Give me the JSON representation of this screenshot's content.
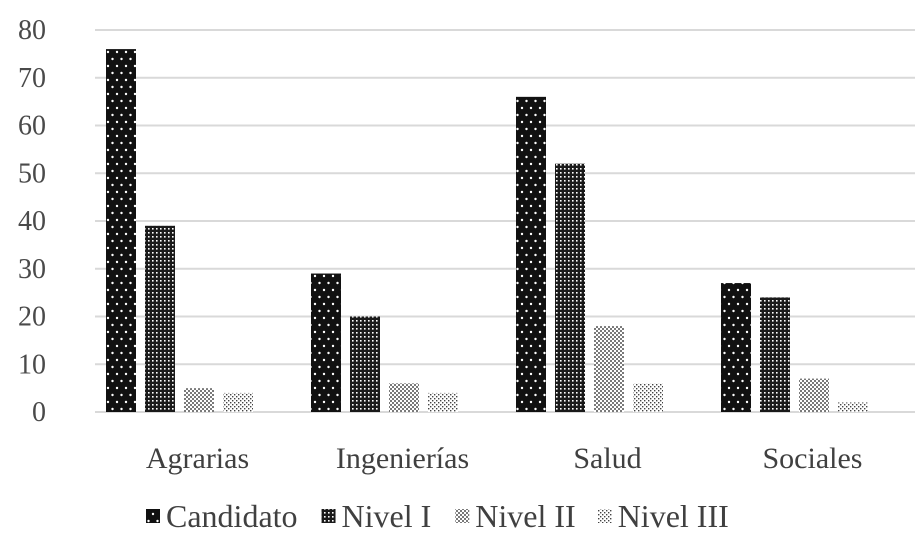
{
  "chart_data": {
    "type": "bar",
    "categories": [
      "Agrarias",
      "Ingenierías",
      "Salud",
      "Sociales"
    ],
    "series": [
      {
        "name": "Candidato",
        "values": [
          76,
          29,
          66,
          27
        ]
      },
      {
        "name": "Nivel I",
        "values": [
          39,
          20,
          52,
          24
        ]
      },
      {
        "name": "Nivel II",
        "values": [
          5,
          6,
          18,
          7
        ]
      },
      {
        "name": "Nivel III",
        "values": [
          4,
          4,
          6,
          2
        ]
      }
    ],
    "title": "",
    "xlabel": "",
    "ylabel": "",
    "ylim": [
      0,
      80
    ],
    "yticks": [
      0,
      10,
      20,
      30,
      40,
      50,
      60,
      70,
      80
    ],
    "grid": true,
    "legend_position": "bottom"
  }
}
